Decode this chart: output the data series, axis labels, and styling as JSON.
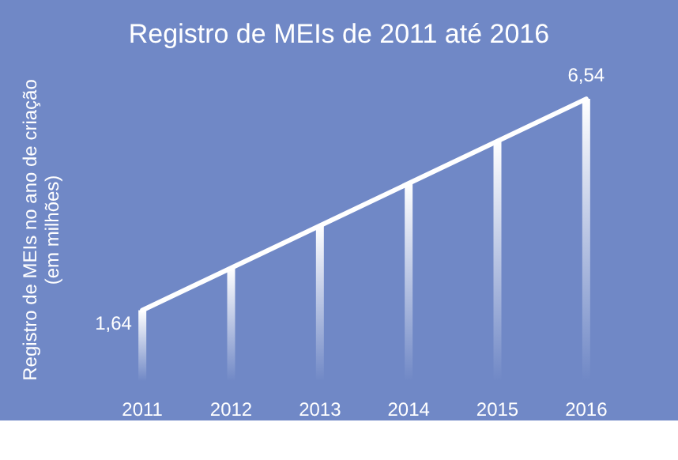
{
  "chart_data": {
    "type": "line",
    "title": "Registro de MEIs de 2011 até 2016",
    "ylabel": "Registro de MEIs no ano de criação\n(em milhões)",
    "categories": [
      "2011",
      "2012",
      "2013",
      "2014",
      "2015",
      "2016"
    ],
    "series": [
      {
        "type": "bar",
        "color": "#ffffff",
        "values": [
          1.64,
          2.62,
          3.6,
          4.58,
          5.56,
          6.54
        ]
      },
      {
        "color": "#ffffff",
        "values": [
          1.64,
          null,
          null,
          null,
          null,
          6.54
        ],
        "value_labels": [
          "1,64",
          null,
          null,
          null,
          null,
          "6,54"
        ]
      }
    ],
    "marker": "none",
    "grid": false,
    "tick_labels": "x"
  }
}
